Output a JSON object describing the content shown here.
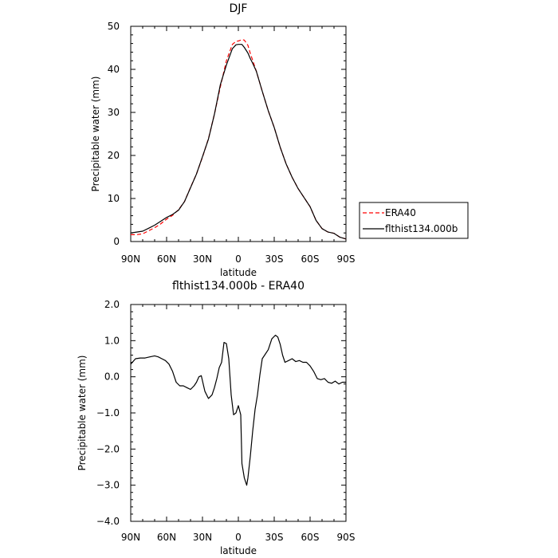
{
  "chart_data": [
    {
      "type": "line",
      "title": "DJF",
      "xlabel": "latitude",
      "ylabel": "Precipitable water (mm)",
      "xlim": [
        90,
        -90
      ],
      "ylim": [
        0,
        50
      ],
      "x_ticks": [
        90,
        60,
        30,
        0,
        -30,
        -60,
        -90
      ],
      "x_tick_labels": [
        "90N",
        "60N",
        "30N",
        "0",
        "30S",
        "60S",
        "90S"
      ],
      "y_ticks": [
        0,
        10,
        20,
        30,
        40,
        50
      ],
      "y_tick_labels": [
        "0",
        "10",
        "20",
        "30",
        "40",
        "50"
      ],
      "legend": "right",
      "series": [
        {
          "name": "ERA40",
          "color": "#ff0000",
          "style": "dashed",
          "x": [
            90,
            85,
            80,
            75,
            70,
            65,
            60,
            55,
            50,
            45,
            40,
            35,
            30,
            25,
            20,
            15,
            10,
            5,
            2,
            0,
            -3,
            -5,
            -8,
            -10,
            -12,
            -15,
            -20,
            -25,
            -30,
            -35,
            -40,
            -45,
            -50,
            -55,
            -60,
            -65,
            -70,
            -75,
            -80,
            -85,
            -90
          ],
          "y": [
            1.6,
            1.6,
            1.8,
            2.5,
            3.2,
            4.1,
            5.2,
            6.1,
            7.4,
            9.3,
            12.6,
            15.7,
            19.6,
            23.9,
            29.6,
            36.0,
            42.0,
            45.8,
            46.5,
            46.6,
            46.9,
            46.8,
            45.6,
            43.7,
            42.1,
            39.6,
            34.9,
            30.4,
            26.5,
            21.9,
            18.0,
            14.9,
            12.3,
            10.2,
            8.1,
            4.9,
            3.0,
            2.2,
            1.9,
            1.0,
            0.6
          ]
        },
        {
          "name": "flthist134.000b",
          "color": "#000000",
          "style": "solid",
          "x": [
            90,
            85,
            80,
            75,
            70,
            65,
            60,
            55,
            50,
            45,
            40,
            35,
            30,
            25,
            20,
            15,
            10,
            5,
            2,
            0,
            -3,
            -5,
            -8,
            -10,
            -12,
            -15,
            -20,
            -25,
            -30,
            -35,
            -40,
            -45,
            -50,
            -55,
            -60,
            -65,
            -70,
            -75,
            -80,
            -85,
            -90
          ],
          "y": [
            2.0,
            2.2,
            2.4,
            3.1,
            3.8,
            4.7,
            5.6,
            6.3,
            7.3,
            9.3,
            12.5,
            15.7,
            19.7,
            23.8,
            29.6,
            36.5,
            41.0,
            44.8,
            45.7,
            45.8,
            45.8,
            45.1,
            43.8,
            42.5,
            41.4,
            39.6,
            34.9,
            30.4,
            26.5,
            21.9,
            18.0,
            14.9,
            12.3,
            10.2,
            8.1,
            4.9,
            3.0,
            2.2,
            1.9,
            1.0,
            0.6
          ]
        }
      ]
    },
    {
      "type": "line",
      "title": "flthist134.000b - ERA40",
      "xlabel": "latitude",
      "ylabel": "Precipitable water (mm)",
      "xlim": [
        90,
        -90
      ],
      "ylim": [
        -4.0,
        2.0
      ],
      "x_ticks": [
        90,
        60,
        30,
        0,
        -30,
        -60,
        -90
      ],
      "x_tick_labels": [
        "90N",
        "60N",
        "30N",
        "0",
        "30S",
        "60S",
        "90S"
      ],
      "y_ticks": [
        2,
        1,
        0,
        -1,
        -2,
        -3,
        -4
      ],
      "y_tick_labels": [
        "2.0",
        "1.0",
        "0.0",
        "−1.0",
        "−2.0",
        "−3.0",
        "−4.0"
      ],
      "series": [
        {
          "color": "#000000",
          "style": "solid",
          "x": [
            90,
            86,
            82,
            78,
            74,
            70,
            67,
            64,
            61,
            58,
            55,
            52,
            49,
            46,
            43,
            40,
            37,
            35,
            33,
            31,
            28,
            25,
            22,
            20,
            18,
            16,
            14,
            12,
            10,
            8,
            6,
            4,
            2,
            0,
            -2,
            -3,
            -5,
            -7,
            -8,
            -10,
            -12,
            -14,
            -16,
            -18,
            -20,
            -22,
            -25,
            -28,
            -31,
            -33,
            -35,
            -37,
            -39,
            -42,
            -45,
            -48,
            -51,
            -54,
            -57,
            -60,
            -63,
            -66,
            -69,
            -72,
            -75,
            -78,
            -81,
            -84,
            -87,
            -90
          ],
          "y": [
            0.35,
            0.5,
            0.52,
            0.52,
            0.55,
            0.58,
            0.55,
            0.5,
            0.45,
            0.35,
            0.15,
            -0.15,
            -0.25,
            -0.25,
            -0.3,
            -0.35,
            -0.25,
            -0.15,
            0.0,
            0.03,
            -0.4,
            -0.6,
            -0.5,
            -0.3,
            -0.05,
            0.25,
            0.4,
            0.95,
            0.92,
            0.5,
            -0.5,
            -1.05,
            -1.0,
            -0.8,
            -1.05,
            -2.4,
            -2.8,
            -3.0,
            -2.8,
            -2.2,
            -1.5,
            -0.9,
            -0.5,
            0.05,
            0.5,
            0.6,
            0.75,
            1.05,
            1.15,
            1.1,
            0.9,
            0.6,
            0.4,
            0.45,
            0.5,
            0.42,
            0.45,
            0.4,
            0.4,
            0.3,
            0.15,
            -0.05,
            -0.08,
            -0.05,
            -0.15,
            -0.18,
            -0.12,
            -0.2,
            -0.15,
            -0.15
          ]
        }
      ]
    }
  ]
}
